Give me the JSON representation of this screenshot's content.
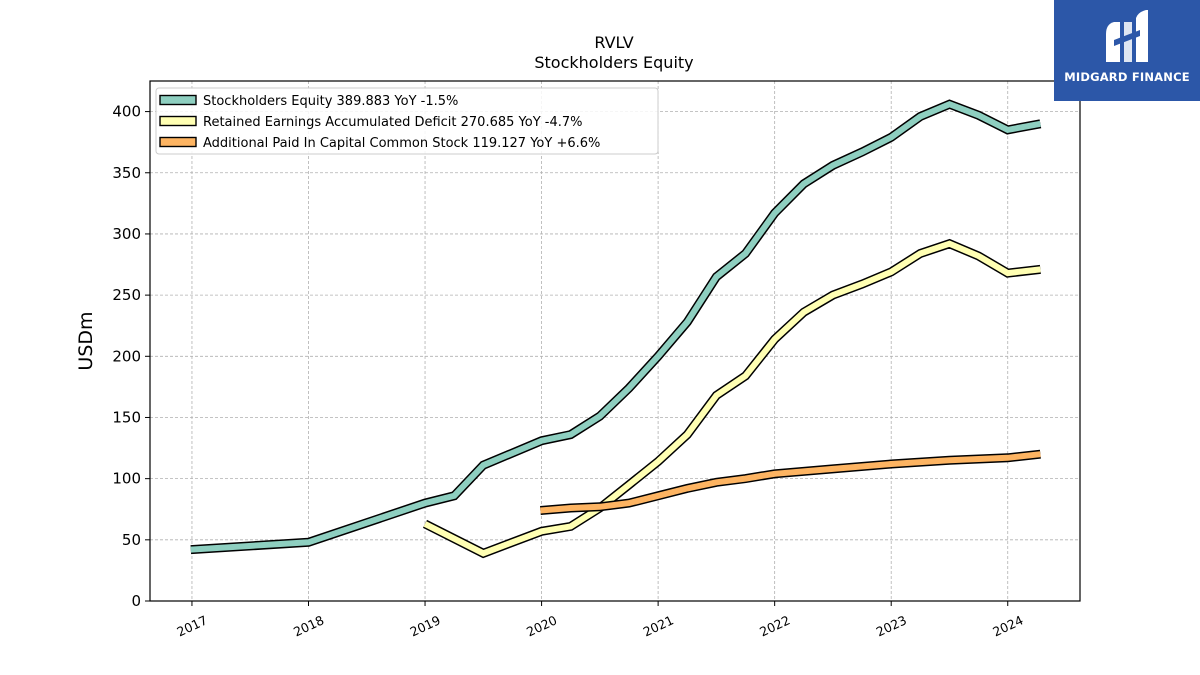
{
  "chart_data": {
    "type": "line",
    "title": "RVLV",
    "subtitle": "Stockholders  Equity",
    "ylabel": "USDm",
    "xlabel": "",
    "ylim": [
      0,
      425
    ],
    "xlim": [
      2016.64,
      2024.62
    ],
    "yticks": [
      "0",
      "50",
      "100",
      "150",
      "200",
      "250",
      "300",
      "350",
      "400"
    ],
    "xticks": [
      "2017",
      "2018",
      "2019",
      "2020",
      "2021",
      "2022",
      "2023",
      "2024"
    ],
    "grid": true,
    "legend_position": "top-left",
    "series": [
      {
        "name": "Stockholders Equity",
        "legend_label": "Stockholders Equity  389.883 YoY -1.5%",
        "color": "#8ecfc0",
        "x": [
          2016.99,
          2018.0,
          2019.0,
          2019.25,
          2019.5,
          2020.0,
          2020.25,
          2020.5,
          2020.75,
          2021.0,
          2021.25,
          2021.5,
          2021.75,
          2022.0,
          2022.25,
          2022.5,
          2022.75,
          2023.0,
          2023.25,
          2023.5,
          2023.75,
          2024.0,
          2024.28
        ],
        "y": [
          42,
          48,
          80,
          86,
          111,
          131,
          136,
          151,
          174,
          200,
          228,
          265,
          284,
          317,
          341,
          356,
          367,
          379,
          396,
          406,
          397,
          385,
          390
        ]
      },
      {
        "name": "Retained Earnings Accumulated Deficit",
        "legend_label": "Retained Earnings Accumulated Deficit  270.685 YoY -4.7%",
        "color": "#ffffb3",
        "x": [
          2019.0,
          2019.5,
          2020.0,
          2020.25,
          2020.5,
          2020.75,
          2021.0,
          2021.25,
          2021.5,
          2021.75,
          2022.0,
          2022.25,
          2022.5,
          2022.75,
          2023.0,
          2023.25,
          2023.5,
          2023.75,
          2024.0,
          2024.28
        ],
        "y": [
          63,
          39,
          57,
          61,
          76,
          95,
          114,
          136,
          168,
          184,
          214,
          236,
          250,
          259,
          269,
          284,
          292,
          282,
          268,
          271
        ]
      },
      {
        "name": "Additional Paid In Capital Common Stock",
        "legend_label": "Additional Paid In Capital Common Stock  119.127 YoY +6.6%",
        "color": "#fdb462",
        "x": [
          2019.99,
          2020.25,
          2020.5,
          2020.75,
          2021.0,
          2021.25,
          2021.5,
          2021.75,
          2022.0,
          2022.5,
          2023.0,
          2023.5,
          2024.0,
          2024.28
        ],
        "y": [
          74,
          76,
          77,
          80,
          86,
          92,
          97,
          100,
          104,
          108,
          112,
          115,
          117,
          120
        ]
      }
    ]
  },
  "brand": {
    "name": "MIDGARD FINANCE",
    "background": "#2c57a8"
  }
}
